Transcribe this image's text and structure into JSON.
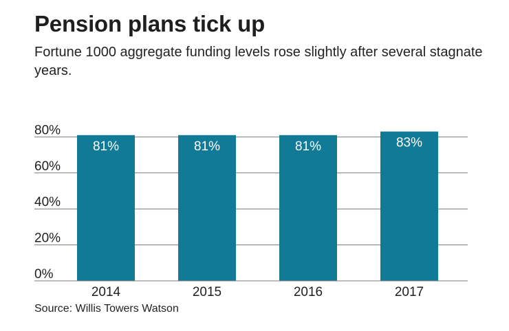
{
  "header": {
    "title": "Pension plans tick up",
    "subtitle": "Fortune 1000 aggregate funding levels rose slightly after several stagnate years."
  },
  "footer": {
    "source": "Source: Willis Towers Watson"
  },
  "colors": {
    "bar": "#117a96",
    "grid": "#7a7a7a",
    "bar_label": "#ffffff",
    "text": "#1f1f1f"
  },
  "chart_data": {
    "type": "bar",
    "title": "Pension plans tick up",
    "subtitle": "Fortune 1000 aggregate funding levels rose slightly after several stagnate years.",
    "categories": [
      "2014",
      "2015",
      "2016",
      "2017"
    ],
    "values": [
      81,
      81,
      81,
      83
    ],
    "data_labels": [
      "81%",
      "81%",
      "81%",
      "83%"
    ],
    "xlabel": "",
    "ylabel": "",
    "ylim": [
      0,
      80
    ],
    "yticks": [
      0,
      20,
      40,
      60,
      80
    ],
    "ytick_labels": [
      "0%",
      "20%",
      "40%",
      "60%",
      "80%"
    ],
    "grid": true,
    "legend": "none",
    "source": "Source: Willis Towers Watson"
  }
}
